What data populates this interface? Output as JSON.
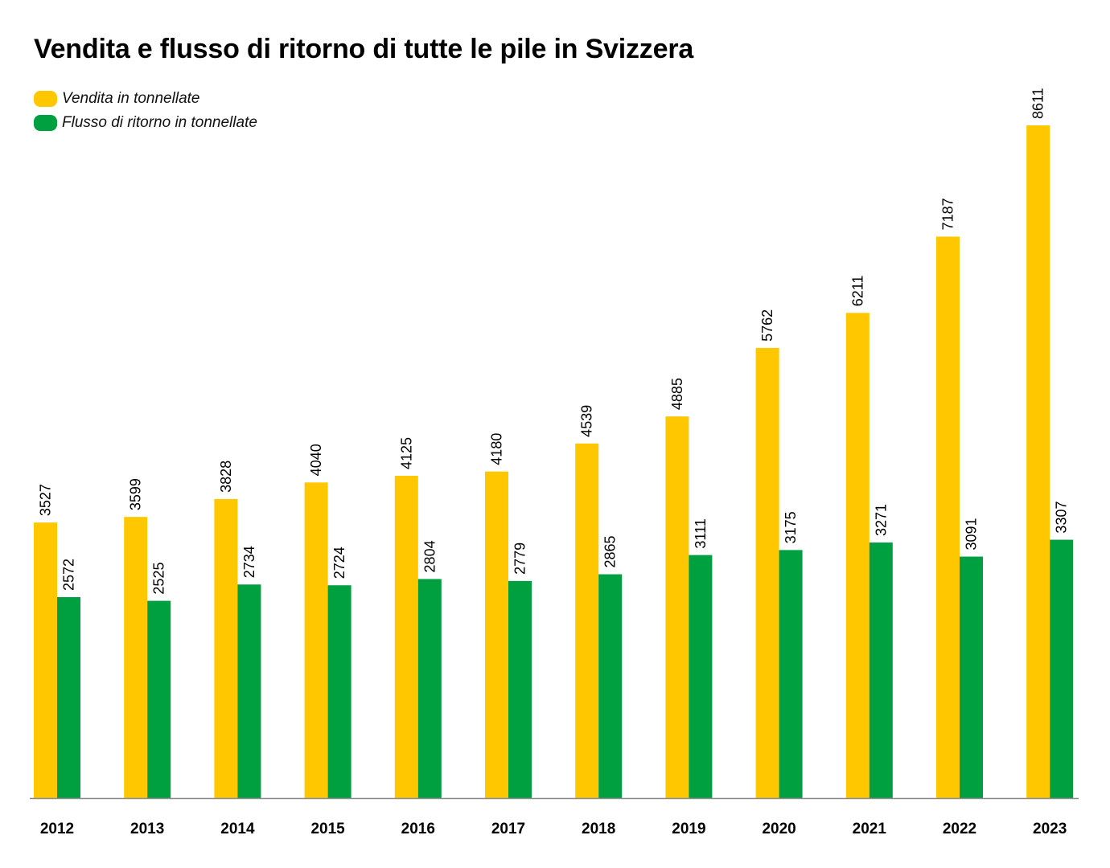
{
  "chart_data": {
    "type": "bar",
    "title": "Vendita e flusso di ritorno di tutte le pile in Svizzera",
    "xlabel": "",
    "ylabel": "",
    "categories": [
      "2012",
      "2013",
      "2014",
      "2015",
      "2016",
      "2017",
      "2018",
      "2019",
      "2020",
      "2021",
      "2022",
      "2023"
    ],
    "series": [
      {
        "name": "Vendita in tonnellate",
        "color": "#FFC700",
        "values": [
          3527,
          3599,
          3828,
          4040,
          4125,
          4180,
          4539,
          4885,
          5762,
          6211,
          7187,
          8611
        ]
      },
      {
        "name": "Flusso di ritorno in tonnellate",
        "color": "#00A040",
        "values": [
          2572,
          2525,
          2734,
          2724,
          2804,
          2779,
          2865,
          3111,
          3175,
          3271,
          3091,
          3307
        ]
      }
    ],
    "ylim": [
      0,
      8611
    ],
    "grid": false,
    "legend_position": "top-left",
    "data_labels": "rotated-vertical-above-bars"
  }
}
